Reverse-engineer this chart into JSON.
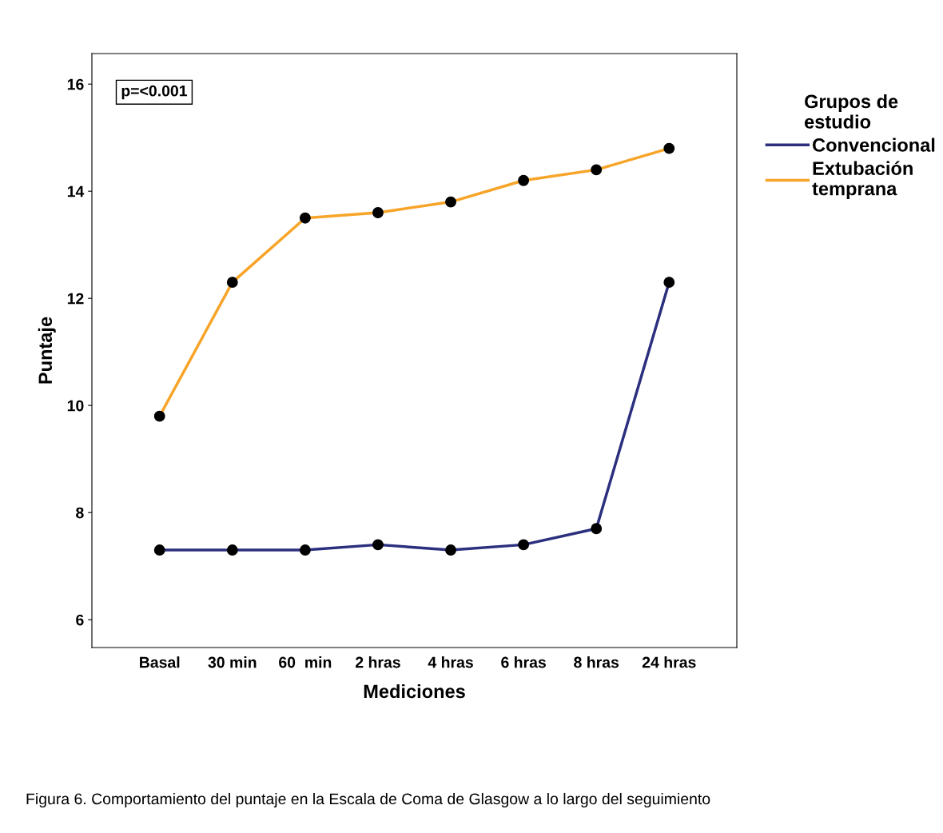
{
  "chart_data": {
    "type": "line",
    "xlabel": "Mediciones",
    "ylabel": "Puntaje",
    "legend_title": "Grupos de\nestudio",
    "categories": [
      "Basal",
      "30 min",
      "60  min",
      "2 hras",
      "4 hras",
      "6 hras",
      "8 hras",
      "24 hras"
    ],
    "series": [
      {
        "name": "Convencional",
        "color": "#2b2f7e",
        "values": [
          7.3,
          7.3,
          7.3,
          7.4,
          7.3,
          7.4,
          7.7,
          12.3
        ]
      },
      {
        "name": "Extubación\ntemprana",
        "color": "#f7a428",
        "values": [
          9.8,
          12.3,
          13.5,
          13.6,
          13.8,
          14.2,
          14.4,
          14.8
        ]
      }
    ],
    "ylim": [
      5.48,
      16.57
    ],
    "yticks": [
      6,
      8,
      10,
      12,
      14,
      16
    ],
    "grid": false,
    "legend": "right",
    "marker": "circle",
    "line_style": "solid",
    "annotations": [
      "p=<0.001",
      "Figura 6. Comportamiento del puntaje en la Escala de Coma de Glasgow a lo largo del seguimiento"
    ]
  }
}
